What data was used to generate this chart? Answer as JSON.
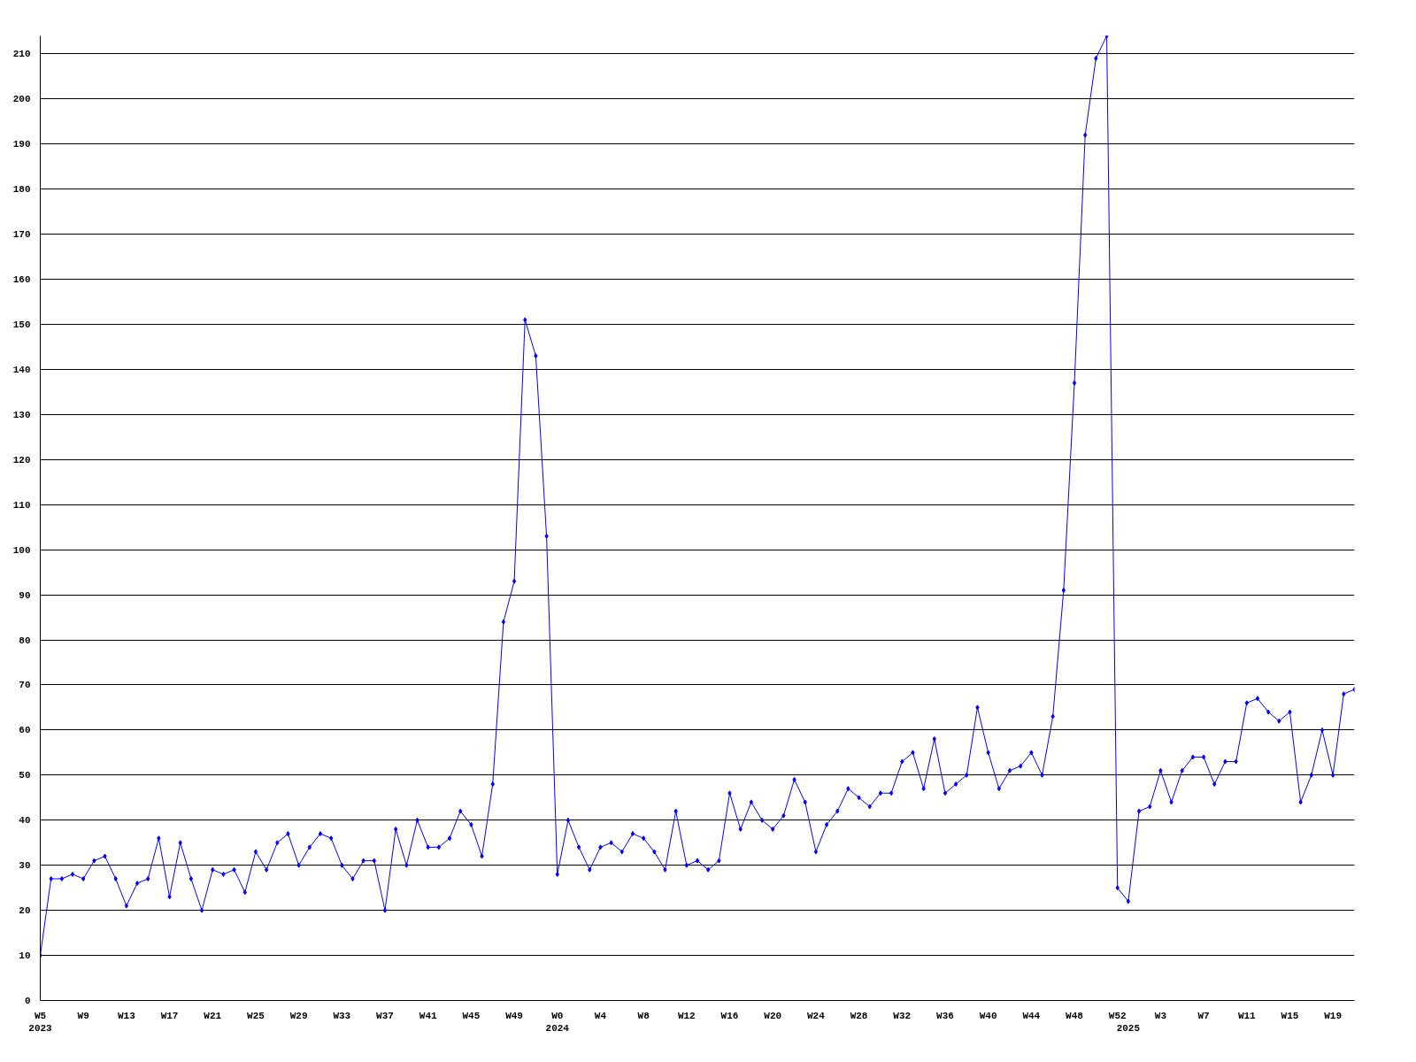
{
  "chart_data": {
    "type": "line",
    "categories": [
      "W5\n2023",
      null,
      null,
      null,
      "W9",
      null,
      null,
      null,
      "W13",
      null,
      null,
      null,
      "W17",
      null,
      null,
      null,
      "W21",
      null,
      null,
      null,
      "W25",
      null,
      null,
      null,
      "W29",
      null,
      null,
      null,
      "W33",
      null,
      null,
      null,
      "W37",
      null,
      null,
      null,
      "W41",
      null,
      null,
      null,
      "W45",
      null,
      null,
      null,
      "W49",
      null,
      null,
      null,
      "W0\n2024",
      null,
      null,
      null,
      "W4",
      null,
      null,
      null,
      "W8",
      null,
      null,
      null,
      "W12",
      null,
      null,
      null,
      "W16",
      null,
      null,
      null,
      "W20",
      null,
      null,
      null,
      "W24",
      null,
      null,
      null,
      "W28",
      null,
      null,
      null,
      "W32",
      null,
      null,
      null,
      "W36",
      null,
      null,
      null,
      "W40",
      null,
      null,
      null,
      "W44",
      null,
      null,
      null,
      "W48",
      null,
      null,
      null,
      "W52",
      "\n2025",
      null,
      null,
      "W3",
      null,
      null,
      null,
      "W7",
      null,
      null,
      null,
      "W11",
      null,
      null,
      null,
      "W15",
      null,
      null,
      null,
      "W19",
      null,
      null
    ],
    "series": [
      {
        "color": "#0000ff",
        "values": [
          10,
          27,
          27,
          28,
          27,
          31,
          32,
          27,
          21,
          26,
          27,
          36,
          23,
          35,
          27,
          20,
          29,
          28,
          29,
          24,
          33,
          29,
          35,
          37,
          30,
          34,
          37,
          36,
          30,
          27,
          31,
          31,
          20,
          38,
          30,
          40,
          34,
          34,
          36,
          42,
          39,
          32,
          48,
          84,
          93,
          151,
          143,
          103,
          28,
          40,
          34,
          29,
          34,
          35,
          33,
          37,
          36,
          33,
          29,
          42,
          30,
          31,
          29,
          31,
          46,
          38,
          44,
          40,
          38,
          41,
          49,
          44,
          33,
          39,
          42,
          47,
          45,
          43,
          46,
          46,
          53,
          55,
          47,
          58,
          46,
          48,
          50,
          65,
          55,
          47,
          51,
          52,
          55,
          50,
          63,
          91,
          137,
          192,
          209,
          214,
          25,
          22,
          42,
          43,
          51,
          44,
          51,
          54,
          54,
          48,
          53,
          53,
          66,
          67,
          64,
          62,
          64,
          44,
          50,
          60,
          50,
          68,
          69
        ]
      }
    ],
    "ylim": [
      0,
      214
    ],
    "yticks": [
      0,
      10,
      20,
      30,
      40,
      50,
      60,
      70,
      80,
      90,
      100,
      110,
      120,
      130,
      140,
      150,
      160,
      170,
      180,
      190,
      200,
      210
    ],
    "grid": "y",
    "marker": "diamond",
    "line_style": "solid"
  }
}
